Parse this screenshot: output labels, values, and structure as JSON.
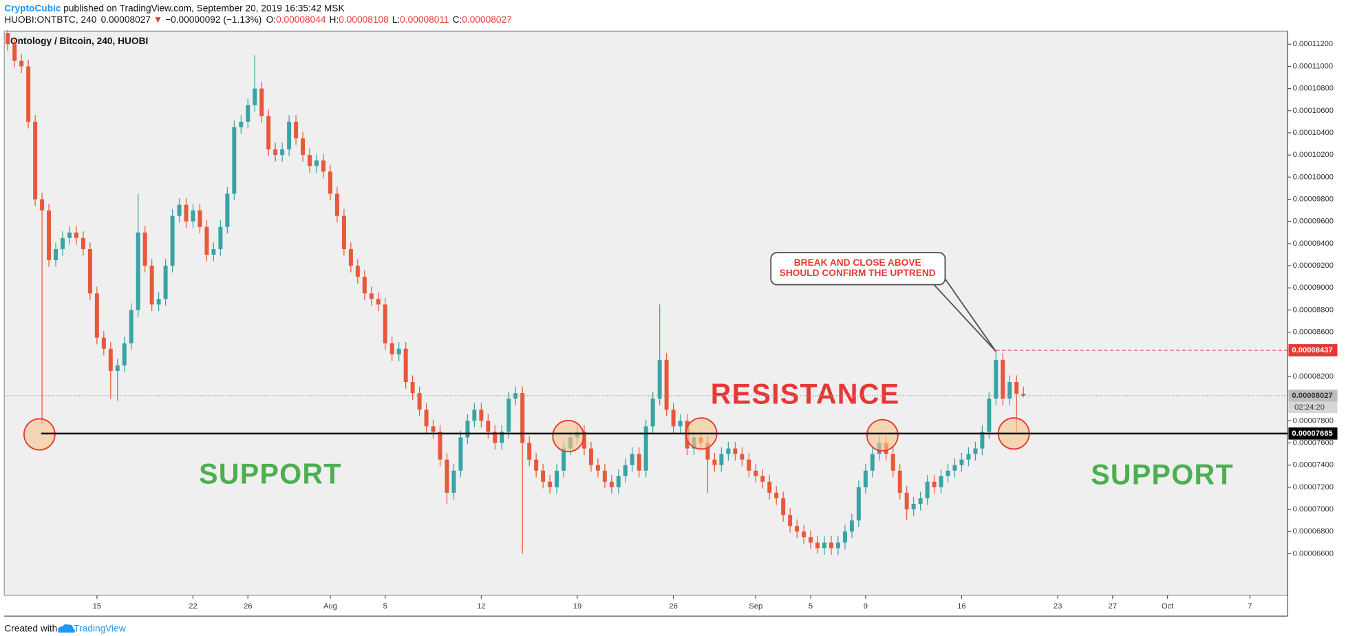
{
  "header": {
    "author": "CryptoCubic",
    "published": "published on TradingView.com, September 20, 2019 16:35:42 MSK",
    "symbol": "HUOBI:ONTBTC, 240",
    "direction": "▼",
    "change": "−0.00000092 (−1.13%)",
    "ohlc_labels": [
      "O:",
      "H:",
      "L:",
      "C:"
    ]
  },
  "chart_data": {
    "type": "candlestick",
    "title": "Ontology / Bitcoin, 240, HUOBI",
    "up_color": "#3aa3a6",
    "down_color": "#e8583a",
    "grid": false,
    "ylim": [
      6.224e-05,
      0.00011318
    ],
    "yticks": [
      {
        "value": 0.000112,
        "label": "0.00011200"
      },
      {
        "value": 0.00011,
        "label": "0.00011000"
      },
      {
        "value": 0.000108,
        "label": "0.00010800"
      },
      {
        "value": 0.000106,
        "label": "0.00010600"
      },
      {
        "value": 0.000104,
        "label": "0.00010400"
      },
      {
        "value": 0.000102,
        "label": "0.00010200"
      },
      {
        "value": 0.0001,
        "label": "0.00010000"
      },
      {
        "value": 9.8e-05,
        "label": "0.00009800"
      },
      {
        "value": 9.6e-05,
        "label": "0.00009600"
      },
      {
        "value": 9.4e-05,
        "label": "0.00009400"
      },
      {
        "value": 9.2e-05,
        "label": "0.00009200"
      },
      {
        "value": 9e-05,
        "label": "0.00009000"
      },
      {
        "value": 8.8e-05,
        "label": "0.00008800"
      },
      {
        "value": 8.6e-05,
        "label": "0.00008600"
      },
      {
        "value": 8.2e-05,
        "label": "0.00008200"
      },
      {
        "value": 7.8e-05,
        "label": "0.00007800"
      },
      {
        "value": 7.6e-05,
        "label": "0.00007600"
      },
      {
        "value": 7.4e-05,
        "label": "0.00007400"
      },
      {
        "value": 7.2e-05,
        "label": "0.00007200"
      },
      {
        "value": 7e-05,
        "label": "0.00007000"
      },
      {
        "value": 6.8e-05,
        "label": "0.00006800"
      },
      {
        "value": 6.6e-05,
        "label": "0.00006600"
      }
    ],
    "support_level": 7.685e-05,
    "countdown": "02:24:20",
    "annotations": {
      "callout": [
        "BREAK AND CLOSE ABOVE",
        "SHOULD CONFIRM THE UPTREND"
      ],
      "resistance": "RESISTANCE",
      "support": [
        "SUPPORT",
        "SUPPORT"
      ]
    },
    "categories": [
      null,
      null,
      null,
      null,
      null,
      null,
      null,
      null,
      null,
      null,
      null,
      null,
      null,
      "15",
      null,
      null,
      null,
      null,
      null,
      null,
      null,
      null,
      null,
      null,
      null,
      null,
      null,
      "22",
      null,
      null,
      null,
      null,
      null,
      null,
      null,
      "26",
      null,
      null,
      null,
      null,
      null,
      null,
      null,
      null,
      null,
      null,
      null,
      "Aug",
      null,
      null,
      null,
      null,
      null,
      null,
      null,
      "5",
      null,
      null,
      null,
      null,
      null,
      null,
      null,
      null,
      null,
      null,
      null,
      null,
      null,
      "12",
      null,
      null,
      null,
      null,
      null,
      null,
      null,
      null,
      null,
      null,
      null,
      null,
      null,
      "19",
      null,
      null,
      null,
      null,
      null,
      null,
      null,
      null,
      null,
      null,
      null,
      null,
      null,
      "26",
      null,
      null,
      null,
      null,
      null,
      null,
      null,
      null,
      null,
      null,
      null,
      "Sep",
      null,
      null,
      null,
      null,
      null,
      null,
      null,
      "5",
      null,
      null,
      null,
      null,
      null,
      null,
      null,
      "9",
      null,
      null,
      null,
      null,
      null,
      null,
      null,
      null,
      null,
      null,
      null,
      null,
      null,
      "16",
      null,
      null,
      null,
      null,
      null,
      null,
      null,
      null,
      null,
      null,
      null,
      null,
      null,
      "23",
      null,
      null,
      null,
      null,
      null,
      null,
      null,
      "27",
      null,
      null,
      null,
      null,
      null,
      null,
      null,
      "Oct",
      null,
      null,
      null,
      null,
      null,
      null,
      null,
      null,
      null,
      null,
      null,
      "7",
      null,
      null,
      null,
      null,
      null
    ],
    "open": [
      0.000113,
      0.000112,
      0.0001105,
      0.00011,
      0.000105,
      9.8e-05,
      9.7e-05,
      9.25e-05,
      9.35e-05,
      9.45e-05,
      9.5e-05,
      9.45e-05,
      9.35e-05,
      8.95e-05,
      8.55e-05,
      8.45e-05,
      8.25e-05,
      8.3e-05,
      8.5e-05,
      8.8e-05,
      9.5e-05,
      9.2e-05,
      8.85e-05,
      8.9e-05,
      9.2e-05,
      9.65e-05,
      9.75e-05,
      9.6e-05,
      9.7e-05,
      9.55e-05,
      9.3e-05,
      9.35e-05,
      9.55e-05,
      9.85e-05,
      0.0001045,
      0.000105,
      0.0001065,
      0.000108,
      0.0001055,
      0.0001025,
      0.000102,
      0.0001025,
      0.000105,
      0.0001035,
      0.000102,
      0.000101,
      0.0001015,
      0.0001005,
      9.85e-05,
      9.65e-05,
      9.35e-05,
      9.2e-05,
      9.1e-05,
      8.95e-05,
      8.9e-05,
      8.85e-05,
      8.5e-05,
      8.4e-05,
      8.45e-05,
      8.15e-05,
      8.05e-05,
      7.9e-05,
      7.75e-05,
      7.7e-05,
      7.45e-05,
      7.15e-05,
      7.35e-05,
      7.65e-05,
      7.8e-05,
      7.9e-05,
      7.8e-05,
      7.7e-05,
      7.6e-05,
      7.7e-05,
      8e-05,
      8.05e-05,
      7.6e-05,
      7.45e-05,
      7.35e-05,
      7.25e-05,
      7.2e-05,
      7.35e-05,
      7.55e-05,
      7.65e-05,
      7.7e-05,
      7.55e-05,
      7.4e-05,
      7.35e-05,
      7.25e-05,
      7.2e-05,
      7.3e-05,
      7.4e-05,
      7.5e-05,
      7.35e-05,
      7.75e-05,
      8e-05,
      8.35e-05,
      7.9e-05,
      7.75e-05,
      7.8e-05,
      7.55e-05,
      7.65e-05,
      7.6e-05,
      7.45e-05,
      7.4e-05,
      7.5e-05,
      7.55e-05,
      7.5e-05,
      7.45e-05,
      7.35e-05,
      7.3e-05,
      7.25e-05,
      7.15e-05,
      7.1e-05,
      6.95e-05,
      6.85e-05,
      6.8e-05,
      6.75e-05,
      6.7e-05,
      6.65e-05,
      6.7e-05,
      6.65e-05,
      6.7e-05,
      6.8e-05,
      6.9e-05,
      7.2e-05,
      7.35e-05,
      7.5e-05,
      7.6e-05,
      7.5e-05,
      7.35e-05,
      7.15e-05,
      7e-05,
      7.05e-05,
      7.1e-05,
      7.25e-05,
      7.2e-05,
      7.3e-05,
      7.35e-05,
      7.4e-05,
      7.45e-05,
      7.5e-05,
      7.55e-05,
      7.7e-05,
      8e-05,
      8.35e-05,
      8e-05,
      8.15e-05,
      8.044e-05,
      null,
      null,
      null,
      null,
      null,
      null,
      null,
      null,
      null,
      null,
      null,
      null,
      null,
      null,
      null,
      null,
      null,
      null,
      null,
      null,
      null,
      null,
      null,
      null,
      null,
      null,
      null,
      null,
      null,
      null,
      null,
      null,
      null,
      null,
      null,
      null,
      null,
      null
    ],
    "high": [
      0.0001133,
      0.0001126,
      0.0001111,
      0.0001106,
      0.0001056,
      9.86e-05,
      9.76e-05,
      9.41e-05,
      9.51e-05,
      9.56e-05,
      9.56e-05,
      9.51e-05,
      9.41e-05,
      9.01e-05,
      8.61e-05,
      8.51e-05,
      8.36e-05,
      8.56e-05,
      8.86e-05,
      9.85e-05,
      9.56e-05,
      9.26e-05,
      8.96e-05,
      9.26e-05,
      9.71e-05,
      9.81e-05,
      9.81e-05,
      9.76e-05,
      9.76e-05,
      9.61e-05,
      9.41e-05,
      9.61e-05,
      9.91e-05,
      0.0001051,
      0.0001056,
      0.0001071,
      0.000111,
      0.0001086,
      0.0001061,
      0.0001031,
      0.0001031,
      0.0001056,
      0.0001056,
      0.0001041,
      0.0001026,
      0.0001021,
      0.0001021,
      0.0001011,
      9.91e-05,
      9.71e-05,
      9.41e-05,
      9.26e-05,
      9.16e-05,
      9.01e-05,
      8.96e-05,
      8.91e-05,
      8.56e-05,
      8.51e-05,
      8.51e-05,
      8.21e-05,
      8.11e-05,
      7.96e-05,
      7.81e-05,
      7.76e-05,
      7.51e-05,
      7.41e-05,
      7.71e-05,
      7.86e-05,
      7.96e-05,
      7.96e-05,
      7.86e-05,
      7.76e-05,
      7.76e-05,
      8.06e-05,
      8.11e-05,
      8.11e-05,
      7.66e-05,
      7.51e-05,
      7.41e-05,
      7.31e-05,
      7.41e-05,
      7.61e-05,
      7.71e-05,
      7.76e-05,
      7.76e-05,
      7.61e-05,
      7.46e-05,
      7.41e-05,
      7.31e-05,
      7.36e-05,
      7.46e-05,
      7.56e-05,
      7.56e-05,
      7.81e-05,
      8.06e-05,
      8.85e-05,
      8.41e-05,
      7.96e-05,
      7.86e-05,
      7.86e-05,
      7.71e-05,
      7.71e-05,
      7.66e-05,
      7.51e-05,
      7.56e-05,
      7.61e-05,
      7.61e-05,
      7.56e-05,
      7.51e-05,
      7.41e-05,
      7.36e-05,
      7.31e-05,
      7.21e-05,
      7.16e-05,
      7.01e-05,
      6.91e-05,
      6.86e-05,
      6.81e-05,
      6.76e-05,
      6.76e-05,
      6.76e-05,
      6.76e-05,
      6.86e-05,
      6.96e-05,
      7.26e-05,
      7.41e-05,
      7.56e-05,
      7.66e-05,
      7.66e-05,
      7.56e-05,
      7.41e-05,
      7.21e-05,
      7.11e-05,
      7.16e-05,
      7.31e-05,
      7.31e-05,
      7.36e-05,
      7.41e-05,
      7.46e-05,
      7.51e-05,
      7.56e-05,
      7.61e-05,
      7.76e-05,
      8.06e-05,
      8.437e-05,
      8.41e-05,
      8.21e-05,
      8.21e-05,
      8.108e-05,
      null,
      null,
      null,
      null,
      null,
      null,
      null,
      null,
      null,
      null,
      null,
      null,
      null,
      null,
      null,
      null,
      null,
      null,
      null,
      null,
      null,
      null,
      null,
      null,
      null,
      null,
      null,
      null,
      null,
      null,
      null,
      null,
      null,
      null,
      null,
      null,
      null,
      null
    ],
    "low": [
      0.0001114,
      0.0001099,
      0.0001094,
      0.0001044,
      9.74e-05,
      7.77e-05,
      9.19e-05,
      9.19e-05,
      9.29e-05,
      9.39e-05,
      9.39e-05,
      9.29e-05,
      8.89e-05,
      8.49e-05,
      8.39e-05,
      8e-05,
      7.98e-05,
      8.24e-05,
      8.44e-05,
      8.74e-05,
      9.14e-05,
      8.79e-05,
      8.79e-05,
      8.84e-05,
      9.14e-05,
      9.59e-05,
      9.54e-05,
      9.54e-05,
      9.49e-05,
      9.24e-05,
      9.24e-05,
      9.29e-05,
      9.49e-05,
      9.79e-05,
      0.0001039,
      0.0001044,
      0.0001059,
      0.0001049,
      0.0001019,
      0.0001014,
      0.0001014,
      0.0001019,
      0.0001029,
      0.0001014,
      0.0001004,
      0.0001004,
      9.99e-05,
      9.79e-05,
      9.59e-05,
      9.29e-05,
      9.14e-05,
      9.04e-05,
      8.89e-05,
      8.84e-05,
      8.79e-05,
      8.44e-05,
      8.34e-05,
      8.34e-05,
      8.09e-05,
      7.99e-05,
      7.84e-05,
      7.69e-05,
      7.64e-05,
      7.39e-05,
      7.05e-05,
      7.09e-05,
      7.29e-05,
      7.59e-05,
      7.74e-05,
      7.74e-05,
      7.64e-05,
      7.54e-05,
      7.54e-05,
      7.64e-05,
      7.94e-05,
      6.6e-05,
      7.39e-05,
      7.29e-05,
      7.19e-05,
      7.14e-05,
      7.14e-05,
      7.29e-05,
      7.49e-05,
      7.59e-05,
      7.49e-05,
      7.34e-05,
      7.29e-05,
      7.19e-05,
      7.14e-05,
      7.14e-05,
      7.24e-05,
      7.34e-05,
      7.29e-05,
      7.29e-05,
      7.69e-05,
      7.94e-05,
      7.84e-05,
      7.69e-05,
      7.69e-05,
      7.49e-05,
      7.49e-05,
      7.54e-05,
      7.15e-05,
      7.34e-05,
      7.34e-05,
      7.44e-05,
      7.44e-05,
      7.39e-05,
      7.29e-05,
      7.24e-05,
      7.19e-05,
      7.09e-05,
      7.04e-05,
      6.89e-05,
      6.79e-05,
      6.74e-05,
      6.69e-05,
      6.64e-05,
      6.6e-05,
      6.59e-05,
      6.59e-05,
      6.59e-05,
      6.64e-05,
      6.74e-05,
      6.84e-05,
      7.14e-05,
      7.29e-05,
      7.44e-05,
      7.44e-05,
      7.29e-05,
      7.09e-05,
      6.9e-05,
      6.94e-05,
      6.99e-05,
      7.04e-05,
      7.14e-05,
      7.14e-05,
      7.24e-05,
      7.29e-05,
      7.34e-05,
      7.39e-05,
      7.44e-05,
      7.49e-05,
      7.64e-05,
      7.94e-05,
      7.94e-05,
      7.94e-05,
      7.7e-05,
      8.011e-05,
      null,
      null,
      null,
      null,
      null,
      null,
      null,
      null,
      null,
      null,
      null,
      null,
      null,
      null,
      null,
      null,
      null,
      null,
      null,
      null,
      null,
      null,
      null,
      null,
      null,
      null,
      null,
      null,
      null,
      null,
      null,
      null,
      null,
      null,
      null,
      null,
      null,
      null
    ],
    "close": [
      0.000112,
      0.0001105,
      0.00011,
      0.000105,
      9.8e-05,
      9.7e-05,
      9.25e-05,
      9.35e-05,
      9.45e-05,
      9.5e-05,
      9.45e-05,
      9.35e-05,
      8.95e-05,
      8.55e-05,
      8.45e-05,
      8.25e-05,
      8.3e-05,
      8.5e-05,
      8.8e-05,
      9.5e-05,
      9.2e-05,
      8.85e-05,
      8.9e-05,
      9.2e-05,
      9.65e-05,
      9.75e-05,
      9.6e-05,
      9.7e-05,
      9.55e-05,
      9.3e-05,
      9.35e-05,
      9.55e-05,
      9.85e-05,
      0.0001045,
      0.000105,
      0.0001065,
      0.000108,
      0.0001055,
      0.0001025,
      0.000102,
      0.0001025,
      0.000105,
      0.0001035,
      0.000102,
      0.000101,
      0.0001015,
      0.0001005,
      9.85e-05,
      9.65e-05,
      9.35e-05,
      9.2e-05,
      9.1e-05,
      8.95e-05,
      8.9e-05,
      8.85e-05,
      8.5e-05,
      8.4e-05,
      8.45e-05,
      8.15e-05,
      8.05e-05,
      7.9e-05,
      7.75e-05,
      7.7e-05,
      7.45e-05,
      7.15e-05,
      7.35e-05,
      7.65e-05,
      7.8e-05,
      7.9e-05,
      7.8e-05,
      7.7e-05,
      7.6e-05,
      7.7e-05,
      8e-05,
      8.05e-05,
      7.6e-05,
      7.45e-05,
      7.35e-05,
      7.25e-05,
      7.2e-05,
      7.35e-05,
      7.55e-05,
      7.65e-05,
      7.7e-05,
      7.55e-05,
      7.4e-05,
      7.35e-05,
      7.25e-05,
      7.2e-05,
      7.3e-05,
      7.4e-05,
      7.5e-05,
      7.35e-05,
      7.75e-05,
      8e-05,
      8.35e-05,
      7.9e-05,
      7.75e-05,
      7.8e-05,
      7.55e-05,
      7.65e-05,
      7.6e-05,
      7.45e-05,
      7.4e-05,
      7.5e-05,
      7.55e-05,
      7.5e-05,
      7.45e-05,
      7.35e-05,
      7.3e-05,
      7.25e-05,
      7.15e-05,
      7.1e-05,
      6.95e-05,
      6.85e-05,
      6.8e-05,
      6.75e-05,
      6.7e-05,
      6.65e-05,
      6.7e-05,
      6.65e-05,
      6.7e-05,
      6.8e-05,
      6.9e-05,
      7.2e-05,
      7.35e-05,
      7.5e-05,
      7.6e-05,
      7.5e-05,
      7.35e-05,
      7.15e-05,
      7e-05,
      7.05e-05,
      7.1e-05,
      7.25e-05,
      7.2e-05,
      7.3e-05,
      7.35e-05,
      7.4e-05,
      7.45e-05,
      7.5e-05,
      7.55e-05,
      7.7e-05,
      8e-05,
      8.35e-05,
      8e-05,
      8.15e-05,
      8.044e-05,
      8.027e-05,
      null,
      null,
      null,
      null,
      null,
      null,
      null,
      null,
      null,
      null,
      null,
      null,
      null,
      null,
      null,
      null,
      null,
      null,
      null,
      null,
      null,
      null,
      null,
      null,
      null,
      null,
      null,
      null,
      null,
      null,
      null,
      null,
      null,
      null,
      null,
      null,
      null,
      null
    ]
  },
  "footer": {
    "text": "Created with",
    "brand": "TradingView"
  }
}
